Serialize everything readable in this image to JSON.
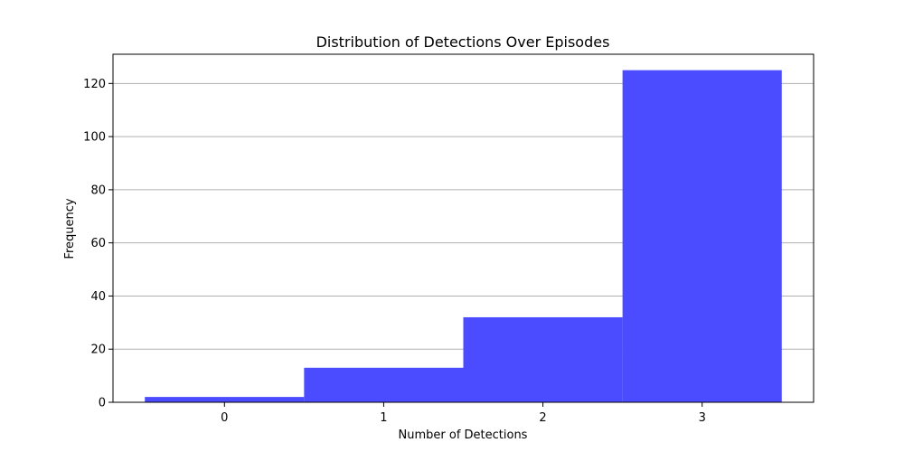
{
  "chart_data": {
    "type": "bar",
    "title": "Distribution of Detections Over Episodes",
    "xlabel": "Number of Detections",
    "ylabel": "Frequency",
    "categories": [
      "0",
      "1",
      "2",
      "3"
    ],
    "values": [
      2,
      13,
      32,
      125
    ],
    "xlim": [
      -0.7,
      3.7
    ],
    "ylim": [
      0,
      131
    ],
    "yticks": [
      0,
      20,
      40,
      60,
      80,
      100,
      120
    ],
    "bar_color": "#4b4bff",
    "grid": "y-major",
    "grid_color": "#b0b0b0",
    "legend": "none"
  }
}
